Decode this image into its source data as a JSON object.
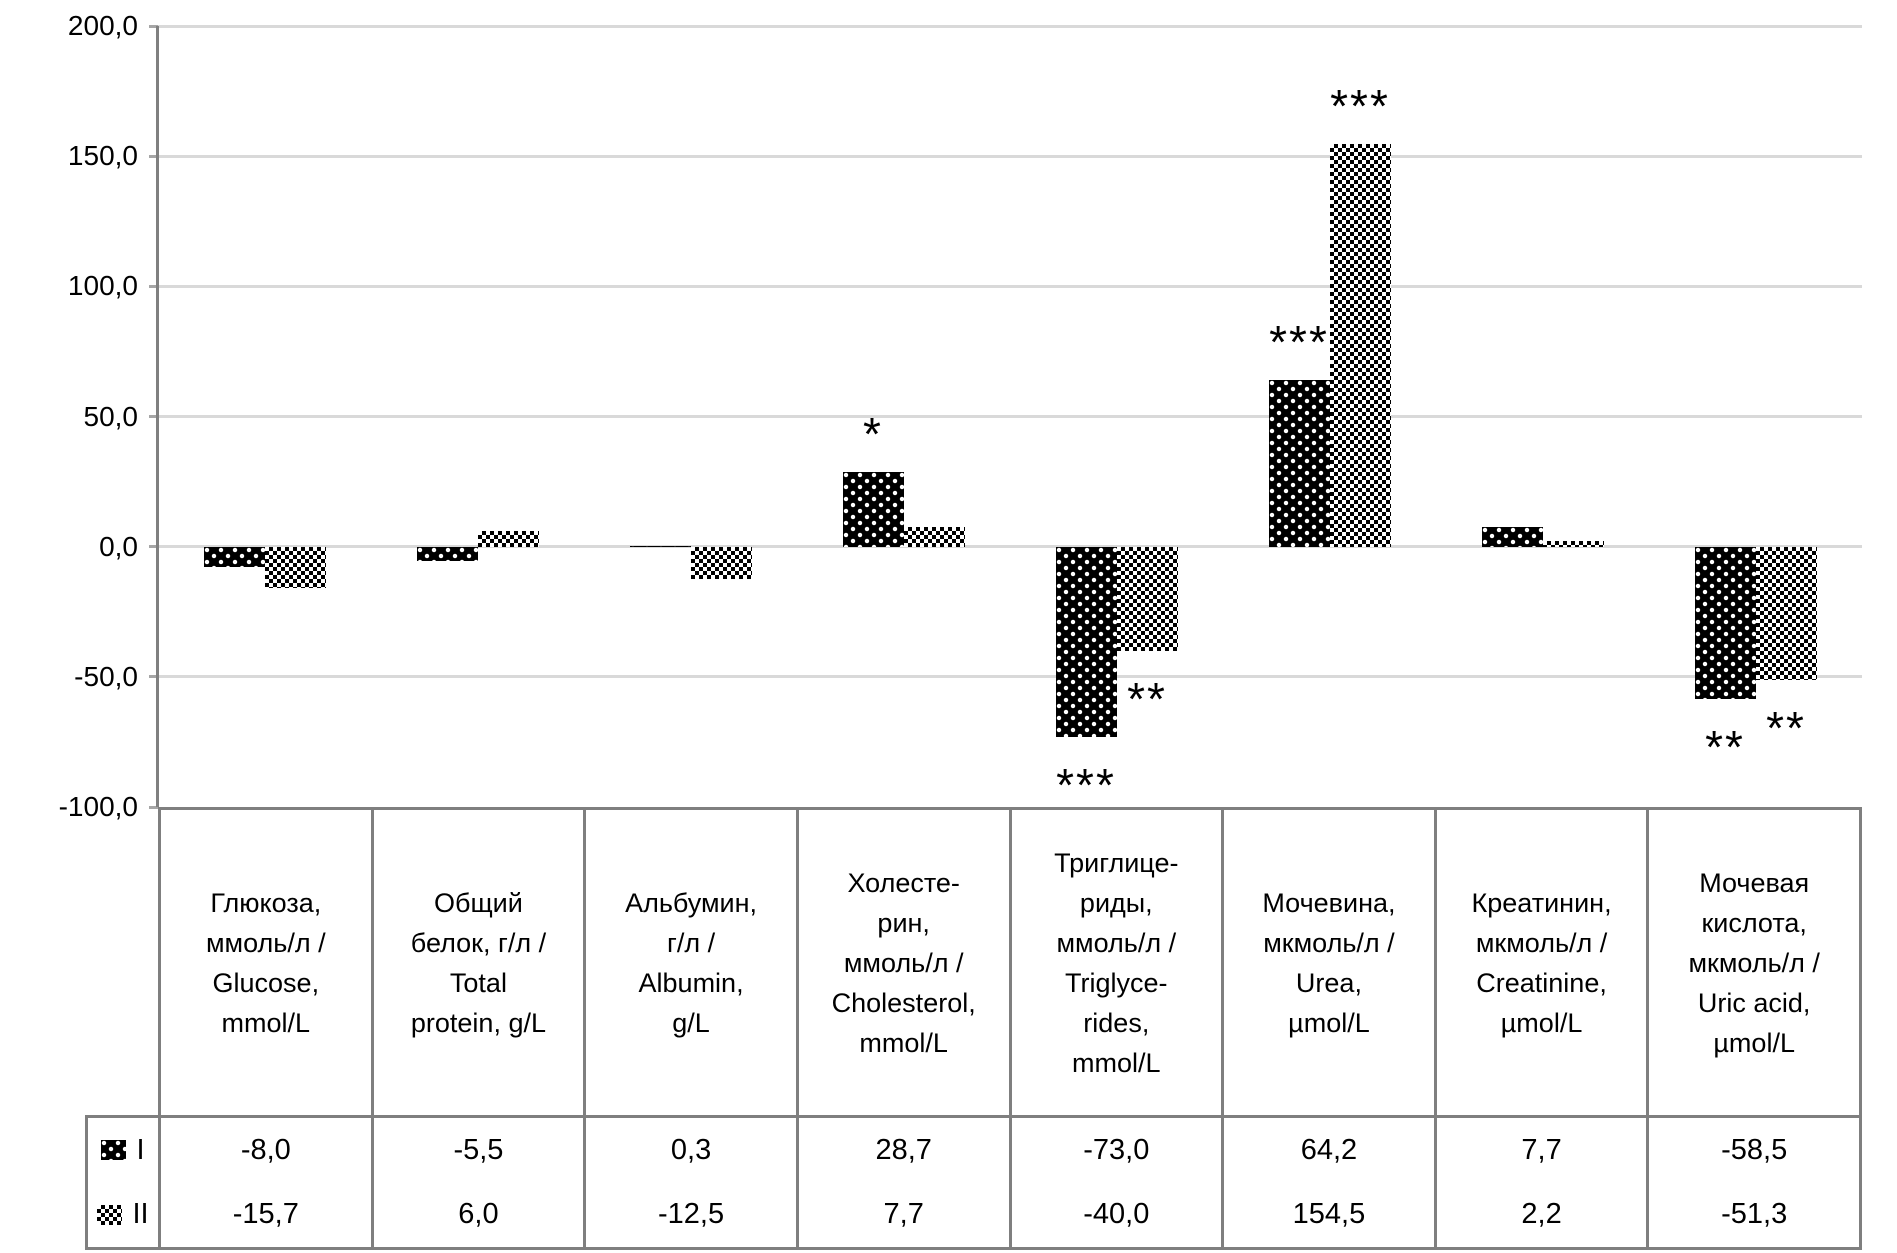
{
  "y_axis": {
    "tick_labels": [
      "200,0",
      "150,0",
      "100,0",
      "50,0",
      "0,0",
      "-50,0",
      "-100,0"
    ]
  },
  "chart_data": {
    "type": "bar",
    "title": "",
    "categories": [
      "Глюкоза, ммоль/л / Glucose, mmol/L",
      "Общий белок, г/л / Total protein, g/L",
      "Альбумин, г/л / Albumin, g/L",
      "Холестерин, ммоль/л / Cholesterol, mmol/L",
      "Триглицериды, ммоль/л / Triglycerides, mmol/L",
      "Мочевина, мкмоль/л / Urea, µmol/L",
      "Креатинин, мкмоль/л / Creatinine, µmol/L",
      "Мочевая кислота, мкмоль/л / Uric acid, µmol/L"
    ],
    "series": [
      {
        "name": "I",
        "pattern": "black-with-white-dots",
        "values": [
          -8.0,
          -5.5,
          0.3,
          28.7,
          -73.0,
          64.2,
          7.7,
          -58.5
        ]
      },
      {
        "name": "II",
        "pattern": "checkerboard",
        "values": [
          -15.7,
          6.0,
          -12.5,
          7.7,
          -40.0,
          154.5,
          2.2,
          -51.3
        ]
      }
    ],
    "ylim": [
      -100,
      200
    ],
    "y_step": 50,
    "grid": true,
    "legend_position": "bottom-table",
    "annotations": [
      {
        "text": "*",
        "category": 3,
        "series": 0,
        "position": "above"
      },
      {
        "text": "***",
        "category": 4,
        "series": 0,
        "position": "below"
      },
      {
        "text": "**",
        "category": 4,
        "series": 1,
        "position": "below"
      },
      {
        "text": "***",
        "category": 5,
        "series": 0,
        "position": "above"
      },
      {
        "text": "***",
        "category": 5,
        "series": 1,
        "position": "above"
      },
      {
        "text": "**",
        "category": 7,
        "series": 0,
        "position": "below"
      },
      {
        "text": "**",
        "category": 7,
        "series": 1,
        "position": "below"
      }
    ]
  },
  "table": {
    "header_labels": [
      "Глюкоза,\nммоль/л /\nGlucose,\nmmol/L",
      "Общий\nбелок, г/л /\nTotal\nprotein, g/L",
      "Альбумин,\nг/л /\nAlbumin,\ng/L",
      "Холесте-\nрин,\nммоль/л /\nCholesterol,\nmmol/L",
      "Триглице-\nриды,\nммоль/л /\nTriglyce-\nrides,\nmmol/L",
      "Мочевина,\nмкмоль/л /\nUrea,\nµmol/L",
      "Креатинин,\nмкмоль/л /\nCreatinine,\nµmol/L",
      "Мочевая\nкислота,\nмкмоль/л /\nUric acid,\nµmol/L"
    ],
    "rows": [
      {
        "legend": "I",
        "values": [
          "-8,0",
          "-5,5",
          "0,3",
          "28,7",
          "-73,0",
          "64,2",
          "7,7",
          "-58,5"
        ]
      },
      {
        "legend": "II",
        "values": [
          "-15,7",
          "6,0",
          "-12,5",
          "7,7",
          "-40,0",
          "154,5",
          "2,2",
          "-51,3"
        ]
      }
    ]
  },
  "colors": {
    "grid": "#d9d9d9",
    "axis": "#808080",
    "table_border": "#7f7f7f",
    "bar": "#000000"
  }
}
